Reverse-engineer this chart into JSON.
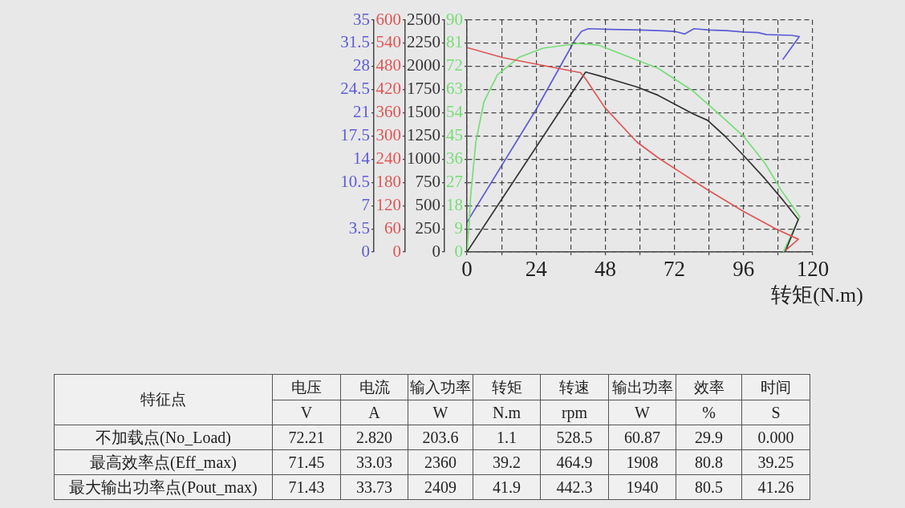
{
  "chart_data": [
    {
      "type": "line",
      "xlim": [
        0,
        120
      ],
      "ylim": [
        0,
        35
      ],
      "yticks": [
        0,
        3.5,
        7,
        10.5,
        14,
        17.5,
        21,
        24.5,
        28,
        31.5,
        35
      ],
      "tick_labels": "y",
      "series": [
        {
          "color": "#5c5cd6",
          "x": [
            0,
            24,
            37.5,
            39.8,
            42.1,
            50,
            60,
            66.3,
            72,
            75.6,
            78.8,
            83.9,
            90,
            96,
            101,
            104,
            112.7,
            115.3,
            109.7
          ],
          "values": [
            4.5,
            21.5,
            32,
            33.3,
            33.7,
            33.6,
            33.5,
            33.4,
            33.3,
            32.9,
            33.7,
            33.5,
            33.4,
            33.2,
            33.1,
            32.8,
            32.7,
            32.5,
            29.1
          ]
        }
      ]
    },
    {
      "type": "line",
      "xlabel": "转矩(N.m)",
      "xlim": [
        0,
        120
      ],
      "xticks": [
        0,
        {
          "value": 12,
          "label": null
        },
        24,
        {
          "value": 36,
          "label": null
        },
        48,
        {
          "value": 60,
          "label": null
        },
        72,
        {
          "value": 84,
          "label": null
        },
        96,
        {
          "value": 108,
          "label": null
        },
        120
      ],
      "ylim": [
        0,
        90
      ],
      "yticks": [
        0,
        9,
        18,
        27,
        36,
        45,
        54,
        63,
        72,
        81,
        90
      ],
      "y2lim": [
        0,
        2500
      ],
      "y2ticks": [
        0,
        250,
        500,
        750,
        1000,
        1250,
        1500,
        1750,
        2000,
        2250,
        2500
      ],
      "y3lim": [
        0,
        600
      ],
      "y3ticks": [
        0,
        60,
        120,
        180,
        240,
        300,
        360,
        420,
        480,
        540,
        600
      ],
      "grid": true,
      "series": [
        {
          "color": "#e05555",
          "axis": "y3",
          "x": [
            0,
            12.4,
            31,
            39.4,
            41.2,
            47.7,
            58.9,
            66.3,
            75.6,
            83.5,
            96,
            107.1,
            115,
            110.7
          ],
          "values": [
            529,
            503,
            476,
            464,
            448,
            375,
            285,
            244,
            199,
            161,
            105,
            60,
            33,
            5
          ]
        },
        {
          "color": "#333333",
          "axis": "y2",
          "x": [
            0,
            41.2,
            45.9,
            58.9,
            66.3,
            78.4,
            83.5,
            89.5,
            96,
            103.4,
            109.9,
            115,
            110.4
          ],
          "values": [
            0,
            1940,
            1900,
            1780,
            1690,
            1490,
            1420,
            1250,
            1040,
            790,
            550,
            350,
            0
          ]
        },
        {
          "color": "#77dd77",
          "axis": "y",
          "x": [
            0,
            0.8,
            1.3,
            3.1,
            5.9,
            10.6,
            18,
            26.4,
            38.4,
            45.9,
            58.9,
            66.3,
            78.4,
            86.8,
            96,
            103.4,
            109,
            115.5,
            109.9
          ],
          "values": [
            0,
            11.6,
            22,
            42.8,
            58.3,
            68.8,
            75.5,
            79.1,
            80.9,
            80.2,
            74.5,
            71.3,
            62.5,
            54.2,
            44.9,
            34.5,
            24.1,
            13.7,
            0.2
          ]
        }
      ]
    },
    {
      "type": "other",
      "ylabel": "特征点",
      "categories": [
        "电压",
        "电流",
        "输入功率",
        "转矩",
        "转速",
        "输出功率",
        "效率",
        "时间"
      ],
      "y_categories": [
        null,
        "不加载点(No_Load)",
        "最高效率点(Eff_max)",
        "最大输出功率点(Pout_max)"
      ],
      "cell_labels": [
        [
          "V",
          "A",
          "W",
          "N.m",
          "rpm",
          "W",
          "%",
          "S"
        ],
        [
          "72.21",
          "2.820",
          "203.6",
          "1.1",
          "528.5",
          "60.87",
          "29.9",
          "0.000"
        ],
        [
          "71.45",
          "33.03",
          "2360",
          "39.2",
          "464.9",
          "1908",
          "80.8",
          "39.25"
        ],
        [
          "71.43",
          "33.73",
          "2409",
          "41.9",
          "442.3",
          "1940",
          "80.5",
          "41.26"
        ]
      ]
    }
  ]
}
